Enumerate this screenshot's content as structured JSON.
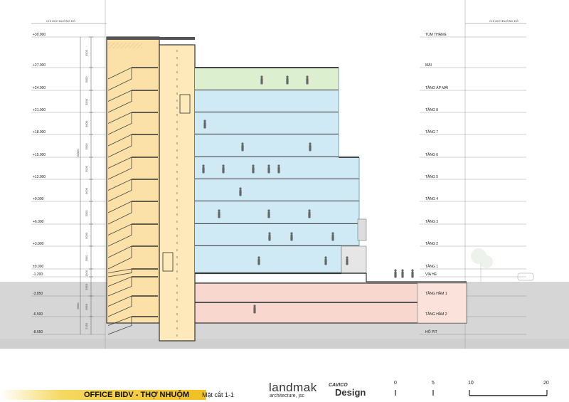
{
  "header": {
    "left_label": "CHỈ GIỚI ĐƯỜNG ĐỎ",
    "right_label": "CHỈ GIỚI ĐƯỜNG ĐỎ"
  },
  "levels": [
    {
      "elev": "+30.900",
      "name": "TUM THANG"
    },
    {
      "elev": "+27.000",
      "name": "MÁI"
    },
    {
      "elev": "+24.000",
      "name": "TẦNG ÁP MÁI"
    },
    {
      "elev": "+21.000",
      "name": "TẦNG 8"
    },
    {
      "elev": "+18.000",
      "name": "TẦNG 7"
    },
    {
      "elev": "+15.000",
      "name": "TẦNG 6"
    },
    {
      "elev": "+12.000",
      "name": "TẦNG 5"
    },
    {
      "elev": "+9.000",
      "name": "TẦNG 4"
    },
    {
      "elev": "+6.000",
      "name": "TẦNG 3"
    },
    {
      "elev": "+3.000",
      "name": "TẦNG 2"
    },
    {
      "elev": "±0.000",
      "name": "TẦNG 1"
    },
    {
      "elev": "-1.200",
      "name": "VỈA HÈ"
    },
    {
      "elev": "-3.850",
      "name": "TẦNG HẦM 1"
    },
    {
      "elev": "-6.500",
      "name": "TẦNG HẦM 2"
    },
    {
      "elev": "-8.650",
      "name": "HỐ PIT"
    }
  ],
  "dimensions": {
    "floor_heights": [
      "3900",
      "3000",
      "3000",
      "3000",
      "3000",
      "3000",
      "3000",
      "3000",
      "3000",
      "3000",
      "1200",
      "2650",
      "2650",
      "2150"
    ],
    "total_above": "30900",
    "total_below": "8650"
  },
  "footer": {
    "project_title": "OFFICE BIDV - THỢ NHUỘM",
    "section_label": "Mặt cắt 1-1",
    "logo1_main": "landmak",
    "logo1_sub": "architecture, jsc",
    "logo2_top": "CAVICO",
    "logo2_main": "Design",
    "scale": [
      "0",
      "5",
      "10",
      "20"
    ]
  }
}
